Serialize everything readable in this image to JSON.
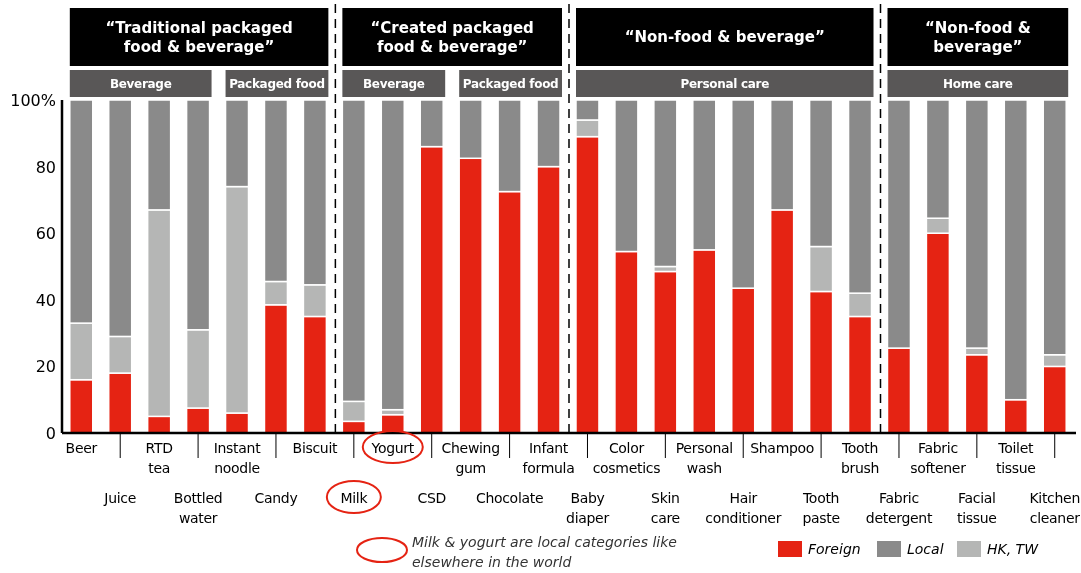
{
  "chart_data": {
    "type": "bar",
    "stacked": true,
    "categories": [
      "Beer",
      "Juice",
      "RTD tea",
      "Bottled water",
      "Instant noodle",
      "Candy",
      "Biscuit",
      "Milk",
      "Yogurt",
      "CSD",
      "Chewing gum",
      "Chocolate",
      "Infant formula",
      "Baby diaper",
      "Color cosmetics",
      "Skin care",
      "Personal wash",
      "Hair conditioner",
      "Shampoo",
      "Tooth paste",
      "Tooth brush",
      "Fabric detergent",
      "Fabric softener",
      "Facial tissue",
      "Toilet tissue",
      "Kitchen cleaner"
    ],
    "series": [
      {
        "name": "Foreign",
        "color": "#e52313",
        "values": [
          16,
          18,
          5,
          7.5,
          6,
          38.5,
          35,
          3.5,
          5.5,
          86,
          82.5,
          72.5,
          80,
          89,
          54.5,
          48.5,
          55,
          43.5,
          67,
          42.5,
          35,
          25.5,
          60,
          23.5,
          10,
          20
        ]
      },
      {
        "name": "HK, TW",
        "color": "#b5b6b5",
        "values": [
          17,
          11,
          62,
          23.5,
          68,
          7,
          9.5,
          6,
          1.5,
          0,
          0,
          0,
          0,
          5,
          0,
          1.5,
          0,
          0,
          0,
          13.5,
          7,
          0,
          4.5,
          2,
          0,
          3.5
        ]
      },
      {
        "name": "Local",
        "color": "#8a8a8a",
        "values": [
          67,
          71,
          33,
          69,
          26,
          54.5,
          55.5,
          90.5,
          93,
          14,
          17.5,
          27.5,
          20,
          6,
          45.5,
          50,
          45,
          56.5,
          33,
          44,
          58,
          74.5,
          35.5,
          74.5,
          90,
          76.5
        ]
      }
    ],
    "ylim": [
      0,
      100
    ],
    "yticks": [
      0,
      20,
      40,
      60,
      80,
      {
        "value": 100,
        "label": "100%"
      }
    ],
    "legend": "bottom right",
    "annotations": [
      "“Traditional packaged food & beverage”",
      "“Created packaged food & beverage”",
      "“Non-food & beverage”",
      "“Non-food & beverage”",
      "Beverage",
      "Packaged food",
      "Beverage",
      "Packaged food",
      "Personal care",
      "Home care",
      "Milk & yogurt are local categories like elsewhere in the world"
    ]
  }
}
